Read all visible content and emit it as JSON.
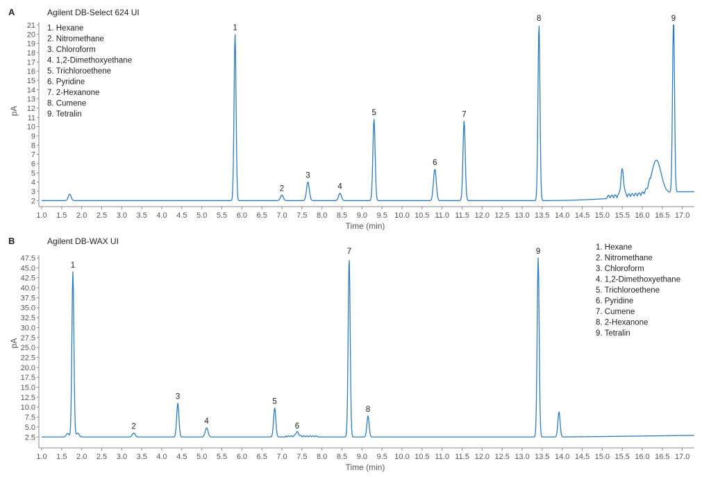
{
  "chart_data": [
    {
      "type": "line",
      "panel_label": "A",
      "title": "Agilent DB-Select 624 UI",
      "xlabel": "Time (min)",
      "ylabel": "pA",
      "xlim": [
        1.0,
        17.3
      ],
      "ylim": [
        1.8,
        21
      ],
      "x_ticks": [
        "1.0",
        "1.5",
        "2.0",
        "2.5",
        "3.0",
        "3.5",
        "4.0",
        "4.5",
        "5.0",
        "5.5",
        "6.0",
        "6.5",
        "7.0",
        "7.5",
        "8.0",
        "8.5",
        "9.0",
        "9.5",
        "10.0",
        "10.5",
        "11.0",
        "11.5",
        "12.0",
        "12.5",
        "13.0",
        "13.5",
        "14.0",
        "14.5",
        "15.0",
        "15.5",
        "16.0",
        "16.5",
        "17.0"
      ],
      "y_ticks": [
        "2",
        "3",
        "4",
        "5",
        "6",
        "7",
        "8",
        "9",
        "10",
        "11",
        "12",
        "13",
        "14",
        "15",
        "16",
        "17",
        "18",
        "19",
        "20",
        "21"
      ],
      "legend_position": "top-left",
      "legend": [
        "1. Hexane",
        "2. Nitromethane",
        "3. Chloroform",
        "4. 1,2-Dimethoxyethane",
        "5. Trichloroethene",
        "6. Pyridine",
        "7. 2-Hexanone",
        "8. Cumene",
        "9. Tetralin"
      ],
      "baseline": 2.0,
      "peaks": [
        {
          "label": "1",
          "x": 5.83,
          "y": 20.0
        },
        {
          "label": "2",
          "x": 7.0,
          "y": 2.6
        },
        {
          "label": "3",
          "x": 7.65,
          "y": 4.0
        },
        {
          "label": "4",
          "x": 8.45,
          "y": 2.8
        },
        {
          "label": "5",
          "x": 9.3,
          "y": 10.8
        },
        {
          "label": "6",
          "x": 10.82,
          "y": 5.4
        },
        {
          "label": "7",
          "x": 11.55,
          "y": 10.6
        },
        {
          "label": "8",
          "x": 13.42,
          "y": 21.0
        },
        {
          "label": "9",
          "x": 16.78,
          "y": 21.0
        }
      ],
      "minor_peaks": [
        {
          "x": 1.7,
          "y": 2.7
        },
        {
          "x": 15.5,
          "y": 4.8
        },
        {
          "x": 16.35,
          "y": 5.7
        }
      ]
    },
    {
      "type": "line",
      "panel_label": "B",
      "title": "Agilent DB-WAX UI",
      "xlabel": "Time (min)",
      "ylabel": "pA",
      "xlim": [
        1.0,
        17.3
      ],
      "ylim": [
        1.5,
        47.5
      ],
      "x_ticks": [
        "1.0",
        "1.5",
        "2.0",
        "2.5",
        "3.0",
        "3.5",
        "4.0",
        "4.5",
        "5.0",
        "5.5",
        "6.0",
        "6.5",
        "7.0",
        "7.5",
        "8.0",
        "8.5",
        "9.0",
        "9.5",
        "10.0",
        "10.5",
        "11.0",
        "11.5",
        "12.0",
        "12.5",
        "13.0",
        "13.5",
        "14.0",
        "14.5",
        "15.0",
        "15.5",
        "16.0",
        "16.5",
        "17.0"
      ],
      "x_tick_texts": [
        "1.0",
        "1.5",
        "2.0",
        "2.5",
        "3.0",
        "3.5",
        "4.0",
        "4.5",
        "5.0",
        "5.5",
        "6.0",
        "6.5",
        "7.0",
        "7.5",
        "8.0",
        "8.5",
        "9.0",
        "9.5",
        "10.0",
        "10.5",
        "11.0",
        "11.5",
        "12.0",
        "12.5",
        "13.0",
        "13.5",
        "14.0",
        "14.5",
        "15.0",
        "15.5",
        "16.0",
        "16.5",
        "17.0"
      ],
      "y_ticks": [
        "2.5",
        "5.0",
        "7.5",
        "10.0",
        "12.5",
        "15.0",
        "17.5",
        "20.0",
        "22.5",
        "25.0",
        "27.5",
        "30.0",
        "32.5",
        "35.0",
        "37.5",
        "40.0",
        "42.5",
        "45.0",
        "47.5"
      ],
      "legend_position": "top-right",
      "legend": [
        "1. Hexane",
        "2. Nitromethane",
        "3. Chloroform",
        "4. 1,2-Dimethoxyethane",
        "5. Trichloroethene",
        "6. Pyridine",
        "7. Cumene",
        "8. 2-Hexanone",
        "9. Tetralin"
      ],
      "baseline": 2.5,
      "peaks": [
        {
          "label": "1",
          "x": 1.78,
          "y": 44.0
        },
        {
          "label": "2",
          "x": 3.3,
          "y": 3.5
        },
        {
          "label": "3",
          "x": 4.4,
          "y": 11.0
        },
        {
          "label": "4",
          "x": 5.12,
          "y": 4.8
        },
        {
          "label": "5",
          "x": 6.82,
          "y": 9.8
        },
        {
          "label": "6",
          "x": 7.38,
          "y": 3.6
        },
        {
          "label": "7",
          "x": 8.68,
          "y": 47.5
        },
        {
          "label": "8",
          "x": 9.15,
          "y": 7.8
        },
        {
          "label": "9",
          "x": 13.4,
          "y": 47.5
        }
      ],
      "minor_peaks": [
        {
          "x": 1.65,
          "y": 3.4
        },
        {
          "x": 1.9,
          "y": 3.5
        },
        {
          "x": 13.92,
          "y": 8.8
        }
      ]
    }
  ]
}
